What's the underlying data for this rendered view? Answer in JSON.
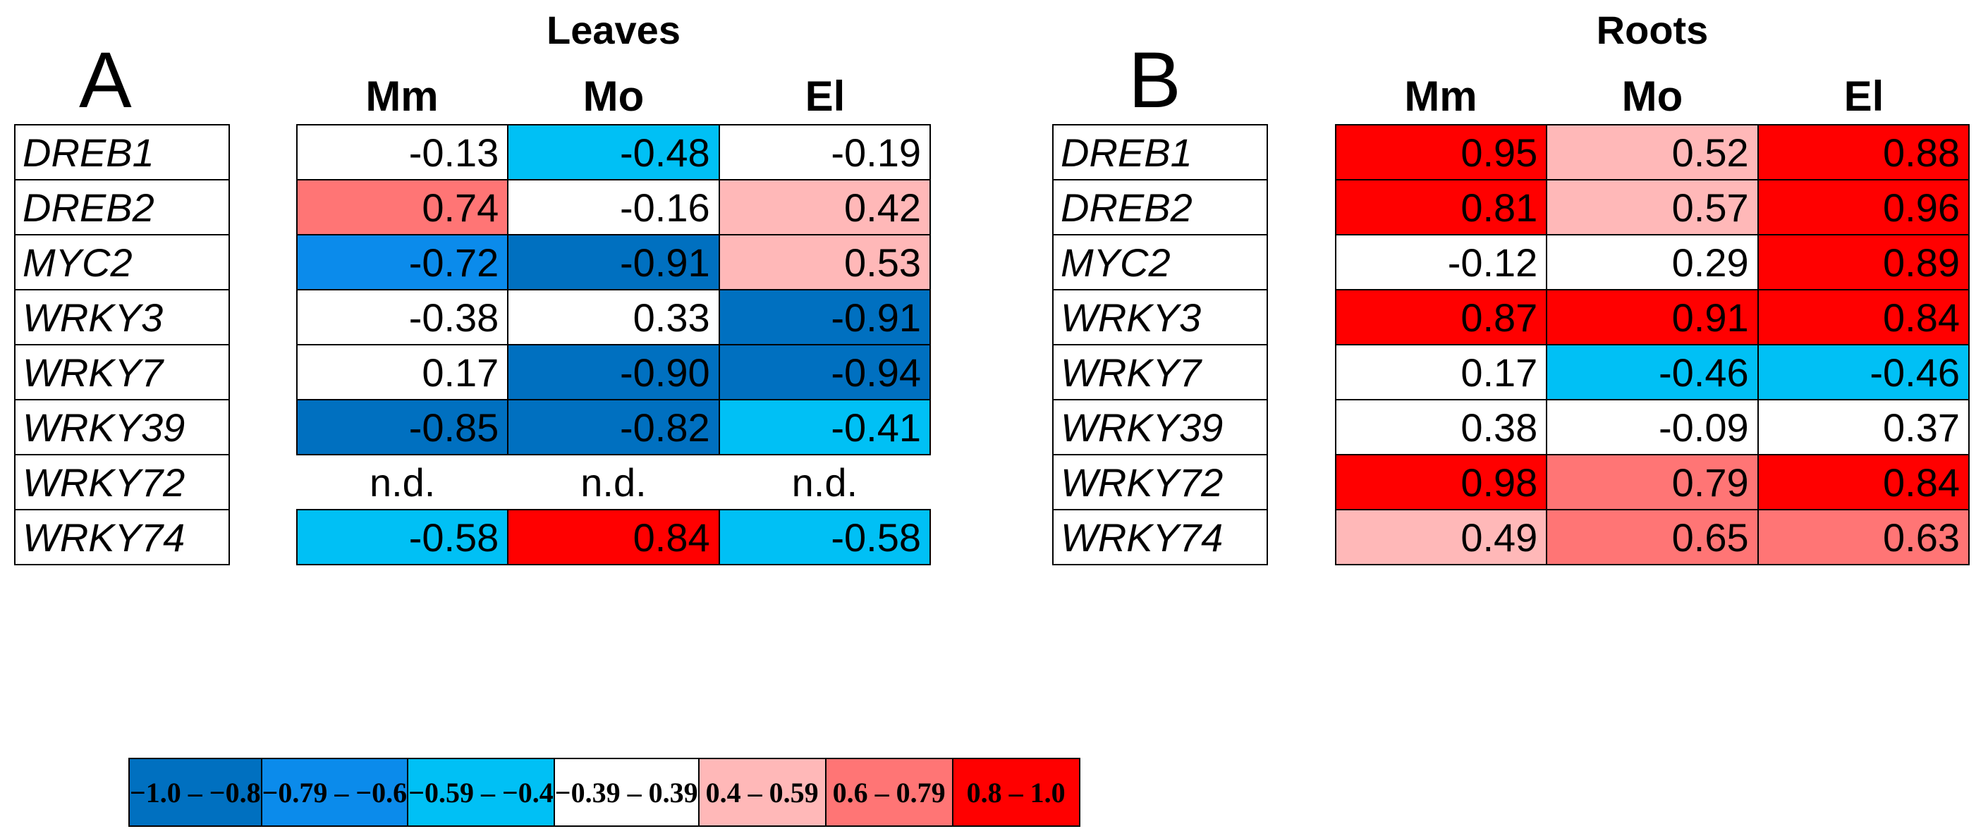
{
  "chart_data": {
    "type": "heatmap",
    "panels": [
      {
        "label": "A",
        "title": "Leaves",
        "columns": [
          "Mm",
          "Mo",
          "El"
        ],
        "rows": [
          "DREB1",
          "DREB2",
          "MYC2",
          "WRKY3",
          "WRKY7",
          "WRKY39",
          "WRKY72",
          "WRKY74"
        ],
        "values": [
          [
            "-0.13",
            "-0.48",
            "-0.19"
          ],
          [
            "0.74",
            "-0.16",
            "0.42"
          ],
          [
            "-0.72",
            "-0.91",
            "0.53"
          ],
          [
            "-0.38",
            "0.33",
            "-0.91"
          ],
          [
            "0.17",
            "-0.90",
            "-0.94"
          ],
          [
            "-0.85",
            "-0.82",
            "-0.41"
          ],
          [
            "n.d.",
            "n.d.",
            "n.d."
          ],
          [
            "-0.58",
            "0.84",
            "-0.58"
          ]
        ]
      },
      {
        "label": "B",
        "title": "Roots",
        "columns": [
          "Mm",
          "Mo",
          "El"
        ],
        "rows": [
          "DREB1",
          "DREB2",
          "MYC2",
          "WRKY3",
          "WRKY7",
          "WRKY39",
          "WRKY72",
          "WRKY74"
        ],
        "values": [
          [
            "0.95",
            "0.52",
            "0.88"
          ],
          [
            "0.81",
            "0.57",
            "0.96"
          ],
          [
            "-0.12",
            "0.29",
            "0.89"
          ],
          [
            "0.87",
            "0.91",
            "0.84"
          ],
          [
            "0.17",
            "-0.46",
            "-0.46"
          ],
          [
            "0.38",
            "-0.09",
            "0.37"
          ],
          [
            "0.98",
            "0.79",
            "0.84"
          ],
          [
            "0.49",
            "0.65",
            "0.63"
          ]
        ]
      }
    ],
    "legend": [
      {
        "label": "−1.0 – −0.8",
        "min": -1.0,
        "max": -0.8,
        "color": "#0070C0"
      },
      {
        "label": "−0.79 – −0.6",
        "min": -0.79,
        "max": -0.6,
        "color": "#0B8BEB"
      },
      {
        "label": "−0.59 – −0.4",
        "min": -0.59,
        "max": -0.4,
        "color": "#00C0F5"
      },
      {
        "label": "−0.39 – 0.39",
        "min": -0.39,
        "max": 0.39,
        "color": "#FFFFFF"
      },
      {
        "label": "0.4 – 0.59",
        "min": 0.4,
        "max": 0.59,
        "color": "#FFB8B8"
      },
      {
        "label": "0.6 – 0.79",
        "min": 0.6,
        "max": 0.79,
        "color": "#FF7575"
      },
      {
        "label": "0.8 – 1.0",
        "min": 0.8,
        "max": 1.0,
        "color": "#FF0000"
      }
    ]
  }
}
